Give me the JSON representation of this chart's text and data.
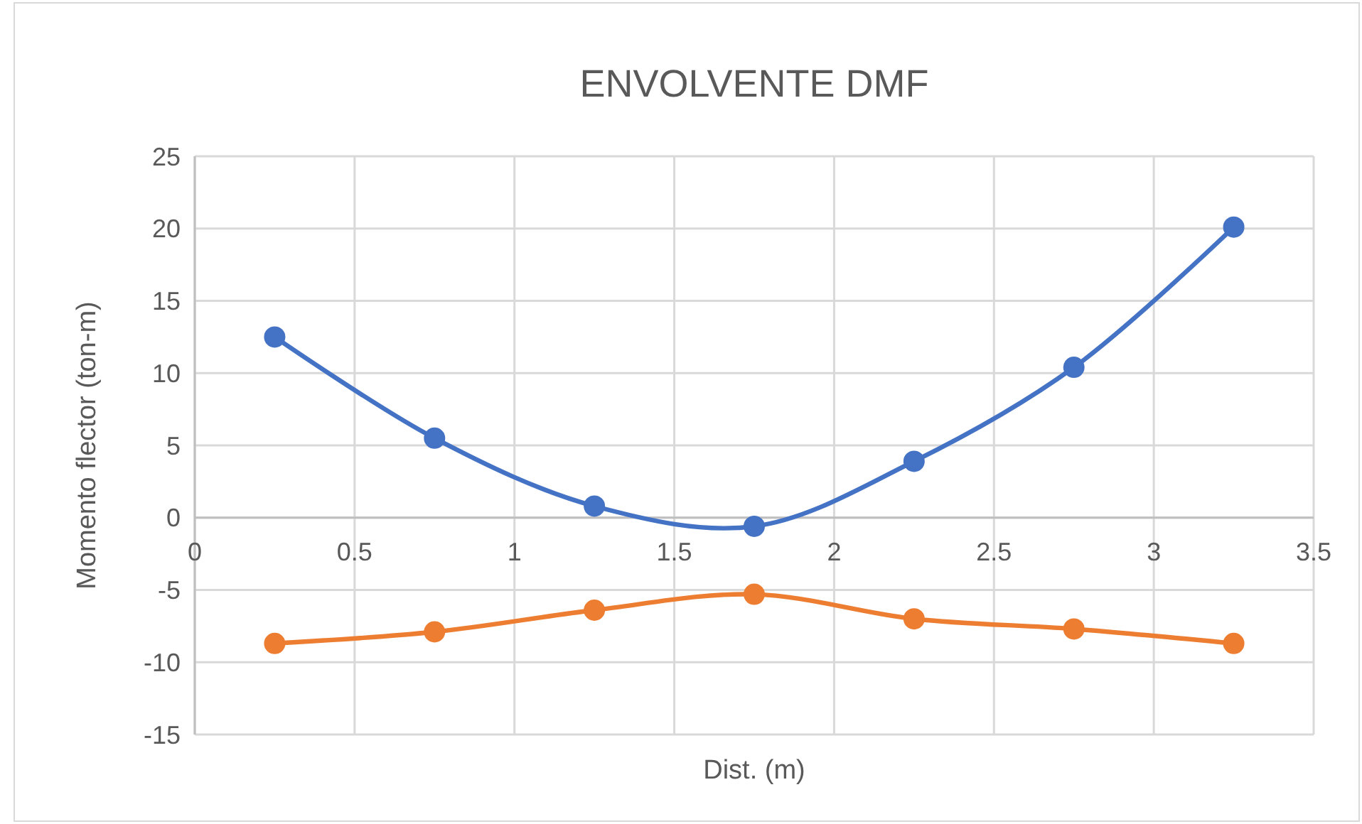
{
  "chart_data": {
    "type": "line",
    "title": "ENVOLVENTE DMF",
    "xlabel": "Dist. (m)",
    "ylabel": "Momento flector (ton-m)",
    "series": [
      {
        "color": "#4472c4",
        "x": [
          0.25,
          0.75,
          1.25,
          1.75,
          2.25,
          2.75,
          3.25
        ],
        "values": [
          12.5,
          5.5,
          0.8,
          -0.6,
          3.9,
          10.4,
          20.1
        ]
      },
      {
        "color": "#ed7d31",
        "x": [
          0.25,
          0.75,
          1.25,
          1.75,
          2.25,
          2.75,
          3.25
        ],
        "values": [
          -8.7,
          -7.9,
          -6.4,
          -5.3,
          -7.0,
          -7.7,
          -8.7
        ]
      }
    ],
    "xlim": [
      0,
      3.5
    ],
    "xticks": [
      0,
      0.5,
      1,
      1.5,
      2,
      2.5,
      3,
      3.5
    ],
    "ylim": [
      -15,
      25
    ],
    "yticks": [
      -15,
      -10,
      -5,
      0,
      5,
      10,
      15,
      20,
      25
    ],
    "grid": true,
    "marker": "circle",
    "line_style": "solid"
  }
}
